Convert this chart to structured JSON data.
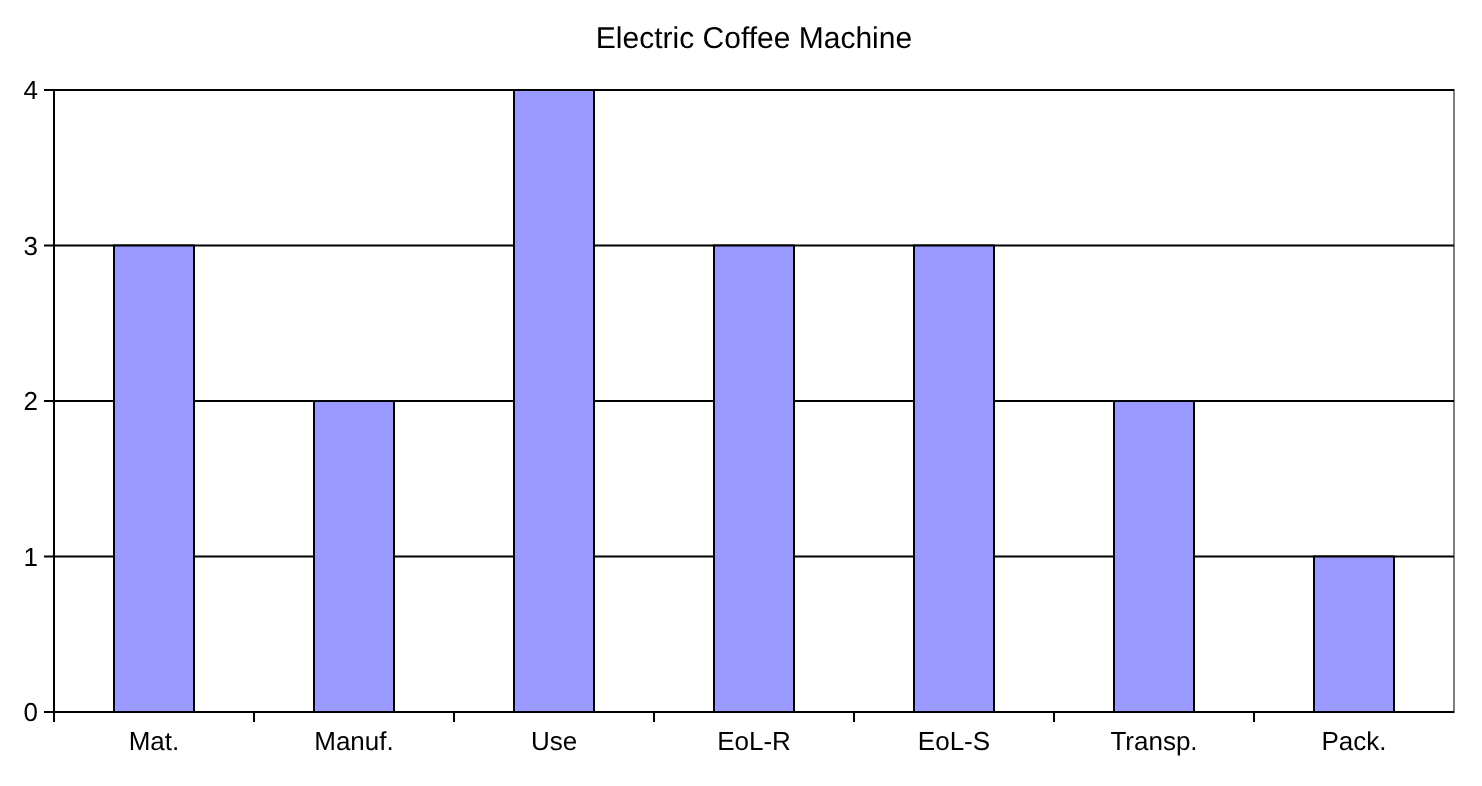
{
  "chart_data": {
    "type": "bar",
    "title": "Electric Coffee Machine",
    "categories": [
      "Mat.",
      "Manuf.",
      "Use",
      "EoL-R",
      "EoL-S",
      "Transp.",
      "Pack."
    ],
    "values": [
      3,
      2,
      4,
      3,
      3,
      2,
      1
    ],
    "color": "#9999ff",
    "ylim": [
      0,
      4
    ],
    "yticks": [
      0,
      1,
      2,
      3,
      4
    ],
    "grid": "y"
  }
}
